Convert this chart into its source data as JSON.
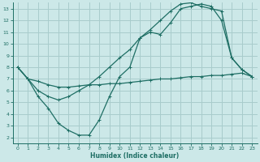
{
  "xlabel": "Humidex (Indice chaleur)",
  "bg_color": "#cce8e8",
  "grid_color": "#a8cccc",
  "line_color": "#1e6e64",
  "xlim": [
    -0.5,
    23.5
  ],
  "ylim": [
    1.5,
    13.5
  ],
  "xticks": [
    0,
    1,
    2,
    3,
    4,
    5,
    6,
    7,
    8,
    9,
    10,
    11,
    12,
    13,
    14,
    15,
    16,
    17,
    18,
    19,
    20,
    21,
    22,
    23
  ],
  "yticks": [
    2,
    3,
    4,
    5,
    6,
    7,
    8,
    9,
    10,
    11,
    12,
    13
  ],
  "line1_x": [
    0,
    1,
    2,
    3,
    4,
    5,
    6,
    7,
    8,
    9,
    10,
    11,
    12,
    13,
    14,
    15,
    16,
    17,
    18,
    19,
    20,
    21,
    22,
    23
  ],
  "line1_y": [
    8.0,
    7.0,
    6.0,
    5.5,
    5.2,
    5.5,
    6.0,
    6.5,
    7.2,
    8.0,
    8.8,
    9.5,
    10.5,
    11.2,
    12.0,
    12.8,
    13.4,
    13.5,
    13.2,
    13.0,
    12.8,
    8.8,
    7.8,
    7.2
  ],
  "line2_x": [
    0,
    1,
    2,
    3,
    4,
    5,
    6,
    7,
    8,
    9,
    10,
    11,
    12,
    13,
    14,
    15,
    16,
    17,
    18,
    19,
    20,
    21,
    22,
    23
  ],
  "line2_y": [
    8.0,
    7.0,
    5.5,
    4.5,
    3.2,
    2.6,
    2.2,
    2.2,
    3.5,
    5.5,
    7.2,
    8.0,
    10.5,
    11.0,
    10.8,
    11.8,
    13.0,
    13.2,
    13.4,
    13.2,
    12.0,
    8.8,
    7.8,
    7.2
  ],
  "line3_x": [
    0,
    1,
    2,
    3,
    4,
    5,
    6,
    7,
    8,
    9,
    10,
    11,
    12,
    13,
    14,
    15,
    16,
    17,
    18,
    19,
    20,
    21,
    22,
    23
  ],
  "line3_y": [
    8.0,
    7.0,
    6.8,
    6.5,
    6.3,
    6.3,
    6.4,
    6.5,
    6.5,
    6.6,
    6.6,
    6.7,
    6.8,
    6.9,
    7.0,
    7.0,
    7.1,
    7.2,
    7.2,
    7.3,
    7.3,
    7.4,
    7.5,
    7.2
  ]
}
